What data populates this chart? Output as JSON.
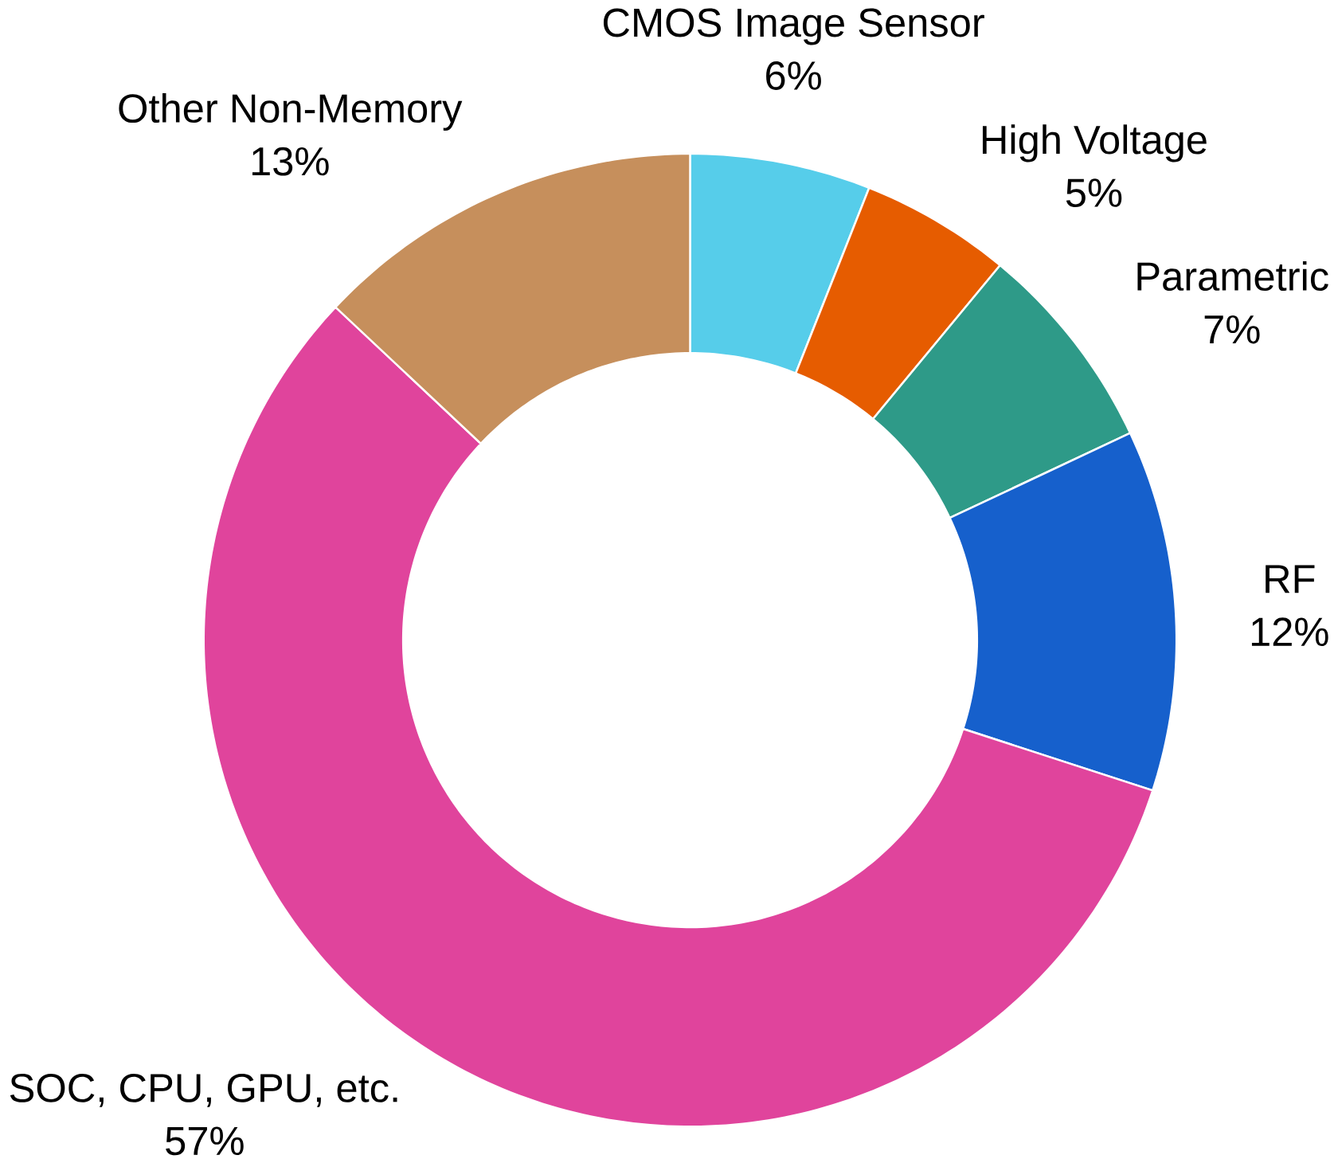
{
  "chart_data": {
    "type": "donut",
    "categories": [
      "CMOS Image Sensor",
      "High Voltage",
      "Parametric",
      "RF",
      "SOC, CPU, GPU, etc.",
      "Other Non-Memory"
    ],
    "values": [
      6,
      5,
      7,
      12,
      57,
      13
    ],
    "value_labels": [
      "6%",
      "5%",
      "7%",
      "12%",
      "57%",
      "13%"
    ],
    "colors": [
      "#56cdea",
      "#e65c00",
      "#2e9a88",
      "#1660cc",
      "#e0449c",
      "#c68f5c"
    ]
  }
}
